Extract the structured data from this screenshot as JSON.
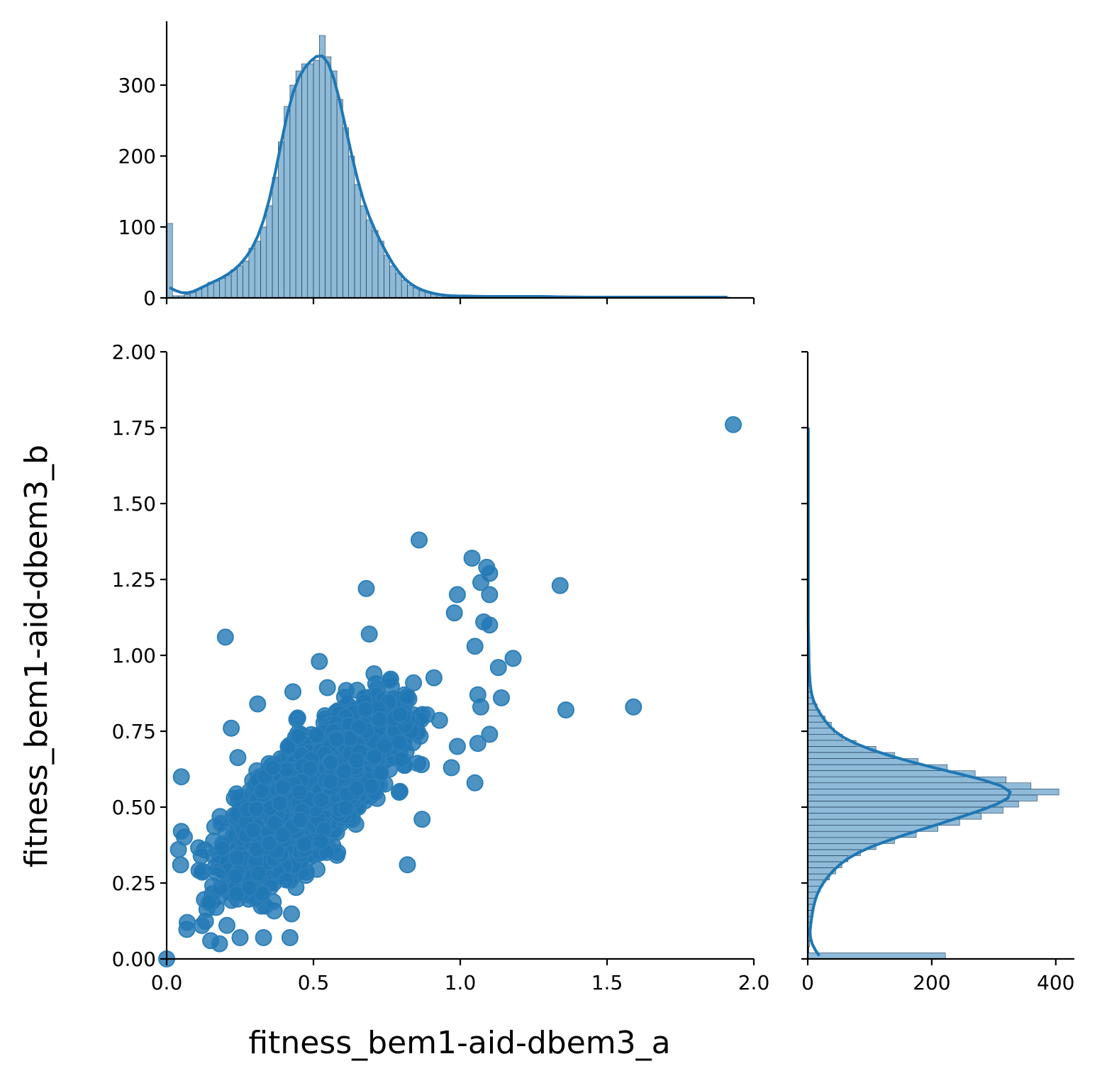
{
  "chart_data": {
    "type": "scatter",
    "variant": "jointplot with marginal histograms and KDE",
    "xlabel": "fitness_bem1-aid-dbem3_a",
    "ylabel": "fitness_bem1-aid-dbem3_b",
    "xlim": [
      0,
      2.0
    ],
    "ylim": [
      0,
      2.0
    ],
    "x_ticks": [
      "0.0",
      "0.5",
      "1.0",
      "1.5",
      "2.0"
    ],
    "y_ticks": [
      "0.00",
      "0.25",
      "0.50",
      "0.75",
      "1.00",
      "1.25",
      "1.50",
      "1.75",
      "2.00"
    ],
    "color": "#1f77b4",
    "scatter_outliers": [
      [
        1.93,
        1.76
      ],
      [
        0.86,
        1.38
      ],
      [
        1.34,
        1.23
      ],
      [
        0.68,
        1.22
      ],
      [
        1.04,
        1.32
      ],
      [
        1.09,
        1.29
      ],
      [
        1.1,
        1.27
      ],
      [
        0.99,
        1.2
      ],
      [
        1.07,
        1.24
      ],
      [
        1.1,
        1.2
      ],
      [
        0.2,
        1.06
      ],
      [
        0.69,
        1.07
      ],
      [
        0.98,
        1.14
      ],
      [
        1.08,
        1.11
      ],
      [
        1.1,
        1.1
      ],
      [
        1.59,
        0.83
      ],
      [
        1.36,
        0.82
      ],
      [
        1.14,
        0.86
      ],
      [
        1.18,
        0.99
      ],
      [
        1.13,
        0.96
      ],
      [
        1.05,
        1.03
      ],
      [
        1.07,
        0.83
      ],
      [
        1.06,
        0.87
      ],
      [
        1.1,
        0.74
      ],
      [
        1.06,
        0.71
      ],
      [
        1.05,
        0.58
      ],
      [
        0.97,
        0.63
      ],
      [
        0.99,
        0.7
      ],
      [
        0.82,
        0.31
      ],
      [
        0.87,
        0.46
      ],
      [
        0.0,
        0.0
      ],
      [
        0.05,
        0.6
      ],
      [
        0.05,
        0.42
      ],
      [
        0.04,
        0.36
      ],
      [
        0.07,
        0.12
      ],
      [
        0.12,
        0.11
      ],
      [
        0.15,
        0.06
      ],
      [
        0.18,
        0.05
      ],
      [
        0.25,
        0.07
      ],
      [
        0.33,
        0.07
      ],
      [
        0.42,
        0.07
      ],
      [
        0.22,
        0.76
      ],
      [
        0.31,
        0.84
      ],
      [
        0.43,
        0.88
      ],
      [
        0.52,
        0.98
      ]
    ],
    "scatter_cloud": {
      "x_mean": 0.5,
      "y_mean": 0.55,
      "x_sd": 0.13,
      "y_sd": 0.13,
      "correlation": 0.75,
      "n_points": 3000
    },
    "x_marginal": {
      "bin_width": 0.02,
      "x_start": 0.0,
      "counts": [
        105,
        3,
        3,
        5,
        8,
        12,
        17,
        22,
        24,
        28,
        32,
        40,
        45,
        52,
        70,
        80,
        100,
        130,
        170,
        220,
        270,
        300,
        320,
        330,
        330,
        335,
        370,
        340,
        320,
        280,
        240,
        200,
        160,
        130,
        110,
        95,
        80,
        60,
        45,
        35,
        25,
        18,
        14,
        10,
        8,
        6,
        4,
        3,
        3,
        2,
        3,
        3,
        2,
        2,
        2,
        2,
        2,
        2,
        2,
        2,
        2,
        2,
        2,
        2,
        2,
        2,
        1,
        1,
        2,
        1,
        1,
        1,
        1,
        1,
        1,
        1,
        1,
        1,
        1,
        1,
        1,
        1,
        1,
        1,
        1,
        1,
        1,
        1,
        1,
        1,
        1,
        1,
        1,
        1,
        1,
        1
      ],
      "count_ticks": [
        "0",
        "100",
        "200",
        "300"
      ],
      "count_max": 390
    },
    "y_marginal": {
      "bin_width": 0.02,
      "y_start": 0.0,
      "counts": [
        222,
        2,
        3,
        3,
        4,
        5,
        6,
        8,
        10,
        12,
        15,
        20,
        25,
        35,
        45,
        55,
        65,
        85,
        110,
        140,
        175,
        210,
        245,
        280,
        315,
        340,
        370,
        405,
        360,
        320,
        270,
        225,
        178,
        140,
        110,
        78,
        56,
        43,
        38,
        28,
        20,
        15,
        8,
        6,
        5,
        4,
        3,
        3,
        2,
        2,
        2,
        2,
        2,
        1,
        1,
        1,
        1,
        1,
        1,
        1,
        1,
        1,
        1,
        1,
        1,
        1,
        1,
        1,
        1,
        1,
        1,
        1,
        1,
        1,
        1,
        1,
        1,
        1,
        1,
        1,
        1,
        1,
        1,
        1,
        1,
        1,
        1,
        1
      ],
      "count_ticks": [
        "0",
        "200",
        "400"
      ],
      "count_max": 430
    }
  }
}
